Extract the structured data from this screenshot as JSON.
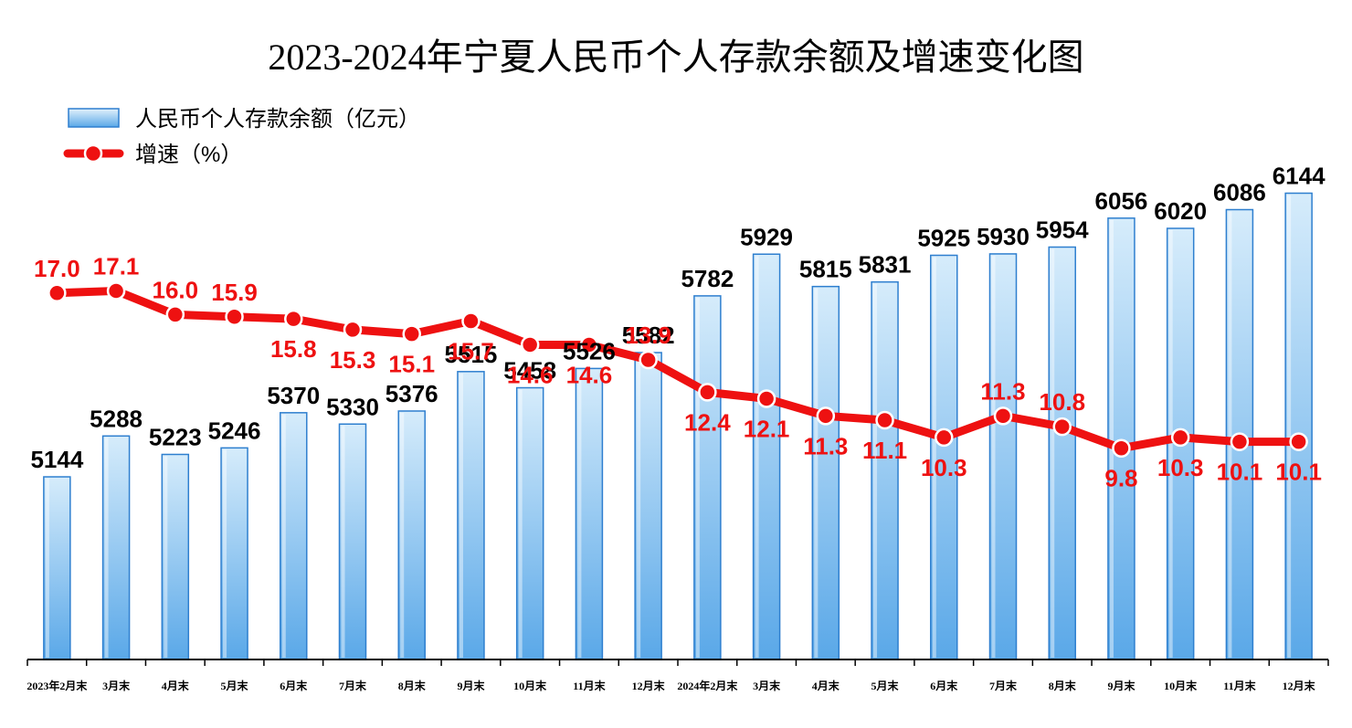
{
  "chart_data": {
    "type": "bar",
    "title": "2023-2024年宁夏人民币个人存款余额及增速变化图",
    "categories": [
      "2023年2月末",
      "3月末",
      "4月末",
      "5月末",
      "6月末",
      "7月末",
      "8月末",
      "9月末",
      "10月末",
      "11月末",
      "12月末",
      "2024年2月末",
      "3月末",
      "4月末",
      "5月末",
      "6月末",
      "7月末",
      "8月末",
      "9月末",
      "10月末",
      "11月末",
      "12月末"
    ],
    "series": [
      {
        "name": "人民币个人存款余额（亿元）",
        "type": "bar",
        "axis": "left",
        "values": [
          5144,
          5288,
          5223,
          5246,
          5370,
          5330,
          5376,
          5515,
          5458,
          5526,
          5582,
          5782,
          5929,
          5815,
          5831,
          5925,
          5930,
          5954,
          6056,
          6020,
          6086,
          6144
        ]
      },
      {
        "name": "增速（%）",
        "type": "line",
        "axis": "right",
        "values": [
          17.0,
          17.1,
          16.0,
          15.9,
          15.8,
          15.3,
          15.1,
          15.7,
          14.6,
          14.6,
          13.9,
          12.4,
          12.1,
          11.3,
          11.1,
          10.3,
          11.3,
          10.8,
          9.8,
          10.3,
          10.1,
          10.1
        ]
      }
    ],
    "value_labels": {
      "bars": [
        "5144",
        "5288",
        "5223",
        "5246",
        "5370",
        "5330",
        "5376",
        "5515",
        "5458",
        "5526",
        "5582",
        "5782",
        "5929",
        "5815",
        "5831",
        "5925",
        "5930",
        "5954",
        "6056",
        "6020",
        "6086",
        "6144"
      ],
      "line": [
        "17.0",
        "17.1",
        "16.0",
        "15.9",
        "15.8",
        "15.3",
        "15.1",
        "15.7",
        "14.6",
        "14.6",
        "13.9",
        "12.4",
        "12.1",
        "11.3",
        "11.1",
        "10.3",
        "11.3",
        "10.8",
        "9.8",
        "10.3",
        "10.1",
        "10.1"
      ]
    },
    "ylim_left": [
      4500,
      6400
    ],
    "ylim_right": [
      0,
      25
    ],
    "legend_position": "top-left",
    "grid": false,
    "colors": {
      "bar": "#5aa8e8",
      "bar_top": "#d6ecfb",
      "bar_edge": "#2e7fcf",
      "line": "#ee1111",
      "marker_edge": "#ffffff",
      "axis": "#000000"
    }
  }
}
